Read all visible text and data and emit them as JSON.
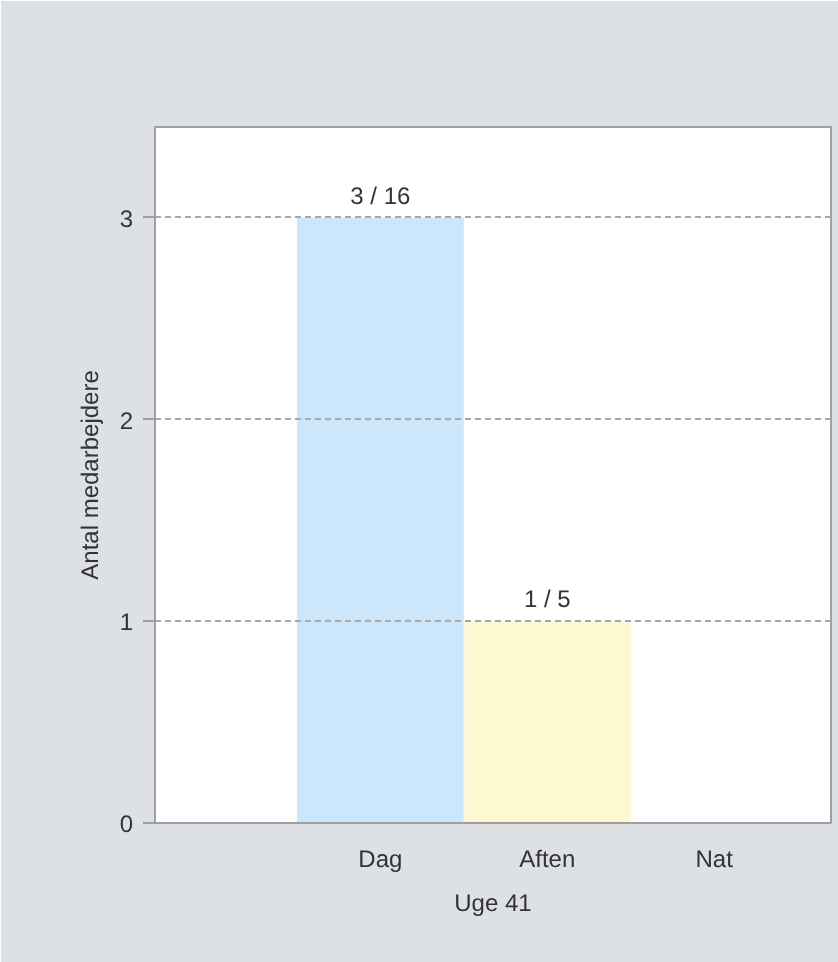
{
  "chart_data": {
    "type": "bar",
    "xlabel": "Uge 41",
    "ylabel": "Antal medarbejdere",
    "categories": [
      "Dag",
      "Aften",
      "Nat"
    ],
    "values": [
      3,
      1,
      0
    ],
    "colors": [
      "#cce7fb",
      "#fdf7d2",
      "#e8e8e8"
    ],
    "annotations": [
      {
        "text": "3 / 16",
        "x": "Dag",
        "y": 3
      },
      {
        "text": "1 / 5",
        "x": "Aften",
        "y": 1
      }
    ],
    "ylim": [
      0,
      3.45
    ],
    "yticks": [
      0,
      1,
      2,
      3
    ],
    "grid": "y"
  }
}
